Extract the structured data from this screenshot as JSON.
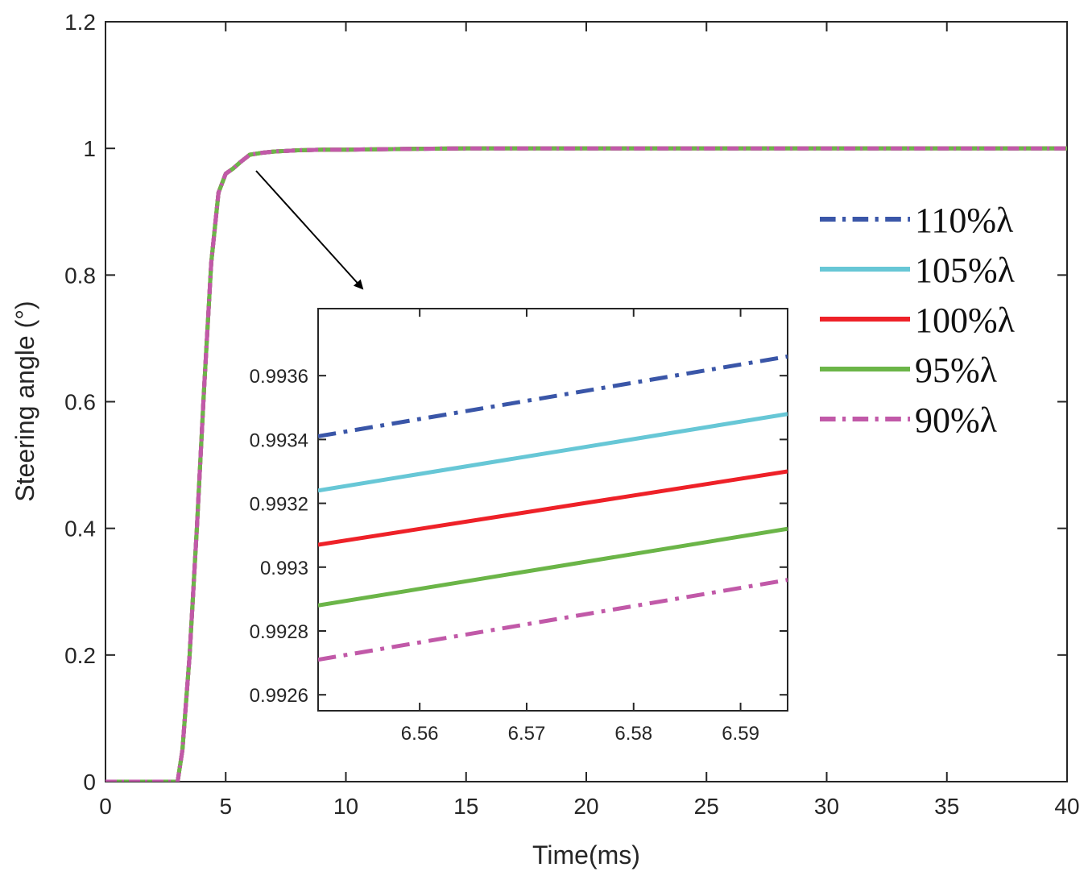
{
  "chart_data": [
    {
      "type": "line",
      "title": "",
      "xlabel": "Time(ms)",
      "ylabel": "Steering angle (°)",
      "xlim": [
        0,
        40
      ],
      "ylim": [
        0,
        1.2
      ],
      "xticks": [
        0,
        5,
        10,
        15,
        20,
        25,
        30,
        35,
        40
      ],
      "xtick_labels": [
        "0",
        "5",
        "10",
        "15",
        "20",
        "25",
        "30",
        "35",
        "40"
      ],
      "yticks": [
        0,
        0.2,
        0.4,
        0.6,
        0.8,
        1.0,
        1.2
      ],
      "ytick_labels": [
        "0",
        "0.2",
        "0.4",
        "0.6",
        "0.8",
        "1",
        "1.2"
      ],
      "grid": false,
      "legend_position": "right",
      "series": [
        {
          "name": "110%λ",
          "color": "#3a56a8",
          "dash": "dashdot",
          "x": [
            0,
            3.0,
            3.2,
            3.5,
            3.8,
            4.1,
            4.4,
            4.7,
            5.0,
            5.3,
            5.6,
            6.0,
            6.5,
            7.0,
            7.5,
            8.0,
            9.0,
            10.0,
            12.0,
            15.0,
            20.0,
            25.0,
            30.0,
            35.0,
            40.0
          ],
          "y": [
            0,
            0,
            0.05,
            0.2,
            0.4,
            0.62,
            0.82,
            0.93,
            0.96,
            0.968,
            0.978,
            0.99,
            0.993,
            0.995,
            0.996,
            0.997,
            0.998,
            0.998,
            0.999,
            1.0,
            1.0,
            1.0,
            1.0,
            1.0,
            1.0
          ]
        },
        {
          "name": "105%λ",
          "color": "#67c7d6",
          "dash": "solid",
          "x": [
            0,
            3.0,
            3.2,
            3.5,
            3.8,
            4.1,
            4.4,
            4.7,
            5.0,
            5.3,
            5.6,
            6.0,
            6.5,
            7.0,
            7.5,
            8.0,
            9.0,
            10.0,
            12.0,
            15.0,
            20.0,
            25.0,
            30.0,
            35.0,
            40.0
          ],
          "y": [
            0,
            0,
            0.05,
            0.2,
            0.4,
            0.62,
            0.82,
            0.93,
            0.96,
            0.968,
            0.978,
            0.99,
            0.993,
            0.995,
            0.996,
            0.997,
            0.998,
            0.998,
            0.999,
            1.0,
            1.0,
            1.0,
            1.0,
            1.0,
            1.0
          ]
        },
        {
          "name": "100%λ",
          "color": "#ee2128",
          "dash": "solid",
          "x": [
            0,
            3.0,
            3.2,
            3.5,
            3.8,
            4.1,
            4.4,
            4.7,
            5.0,
            5.3,
            5.6,
            6.0,
            6.5,
            7.0,
            7.5,
            8.0,
            9.0,
            10.0,
            12.0,
            15.0,
            20.0,
            25.0,
            30.0,
            35.0,
            40.0
          ],
          "y": [
            0,
            0,
            0.05,
            0.2,
            0.4,
            0.62,
            0.82,
            0.93,
            0.96,
            0.968,
            0.978,
            0.99,
            0.993,
            0.995,
            0.996,
            0.997,
            0.998,
            0.998,
            0.999,
            1.0,
            1.0,
            1.0,
            1.0,
            1.0,
            1.0
          ]
        },
        {
          "name": "95%λ",
          "color": "#6bb548",
          "dash": "solid",
          "x": [
            0,
            3.0,
            3.2,
            3.5,
            3.8,
            4.1,
            4.4,
            4.7,
            5.0,
            5.3,
            5.6,
            6.0,
            6.5,
            7.0,
            7.5,
            8.0,
            9.0,
            10.0,
            12.0,
            15.0,
            20.0,
            25.0,
            30.0,
            35.0,
            40.0
          ],
          "y": [
            0,
            0,
            0.05,
            0.2,
            0.4,
            0.62,
            0.82,
            0.93,
            0.96,
            0.968,
            0.978,
            0.99,
            0.993,
            0.995,
            0.996,
            0.997,
            0.998,
            0.998,
            0.999,
            1.0,
            1.0,
            1.0,
            1.0,
            1.0,
            1.0
          ]
        },
        {
          "name": "90%λ",
          "color": "#c159a8",
          "dash": "dashdot",
          "x": [
            0,
            3.0,
            3.2,
            3.5,
            3.8,
            4.1,
            4.4,
            4.7,
            5.0,
            5.3,
            5.6,
            6.0,
            6.5,
            7.0,
            7.5,
            8.0,
            9.0,
            10.0,
            12.0,
            15.0,
            20.0,
            25.0,
            30.0,
            35.0,
            40.0
          ],
          "y": [
            0,
            0,
            0.05,
            0.2,
            0.4,
            0.62,
            0.82,
            0.93,
            0.96,
            0.968,
            0.978,
            0.99,
            0.993,
            0.995,
            0.996,
            0.997,
            0.998,
            0.998,
            0.999,
            1.0,
            1.0,
            1.0,
            1.0,
            1.0,
            1.0
          ]
        }
      ]
    },
    {
      "type": "line",
      "title": "",
      "xlabel": "",
      "ylabel": "",
      "xlim": [
        6.5505,
        6.5944
      ],
      "ylim": [
        0.99255,
        0.99381
      ],
      "xticks": [
        6.56,
        6.57,
        6.58,
        6.59
      ],
      "xtick_labels": [
        "6.56",
        "6.57",
        "6.58",
        "6.59"
      ],
      "yticks": [
        0.9926,
        0.9928,
        0.993,
        0.9932,
        0.9934,
        0.9936
      ],
      "ytick_labels": [
        "0.9926",
        "0.9928",
        "0.993",
        "0.9932",
        "0.9934",
        "0.9936"
      ],
      "grid": false,
      "series": [
        {
          "name": "110%λ",
          "color": "#3a56a8",
          "dash": "dashdot",
          "x": [
            6.5505,
            6.5944
          ],
          "y": [
            0.99341,
            0.99366
          ]
        },
        {
          "name": "105%λ",
          "color": "#67c7d6",
          "dash": "solid",
          "x": [
            6.5505,
            6.5944
          ],
          "y": [
            0.99324,
            0.99348
          ]
        },
        {
          "name": "100%λ",
          "color": "#ee2128",
          "dash": "solid",
          "x": [
            6.5505,
            6.5944
          ],
          "y": [
            0.99307,
            0.9933
          ]
        },
        {
          "name": "95%λ",
          "color": "#6bb548",
          "dash": "solid",
          "x": [
            6.5505,
            6.5944
          ],
          "y": [
            0.99288,
            0.99312
          ]
        },
        {
          "name": "90%λ",
          "color": "#c159a8",
          "dash": "dashdot",
          "x": [
            6.5505,
            6.5944
          ],
          "y": [
            0.99271,
            0.99296
          ]
        }
      ]
    }
  ],
  "legend": {
    "items": [
      {
        "label": "110%λ",
        "color": "#3a56a8",
        "dash": "dashdot"
      },
      {
        "label": "105%λ",
        "color": "#67c7d6",
        "dash": "solid"
      },
      {
        "label": "100%λ",
        "color": "#ee2128",
        "dash": "solid"
      },
      {
        "label": "95%λ",
        "color": "#6bb548",
        "dash": "solid"
      },
      {
        "label": "90%λ",
        "color": "#c159a8",
        "dash": "dashdot"
      }
    ]
  }
}
